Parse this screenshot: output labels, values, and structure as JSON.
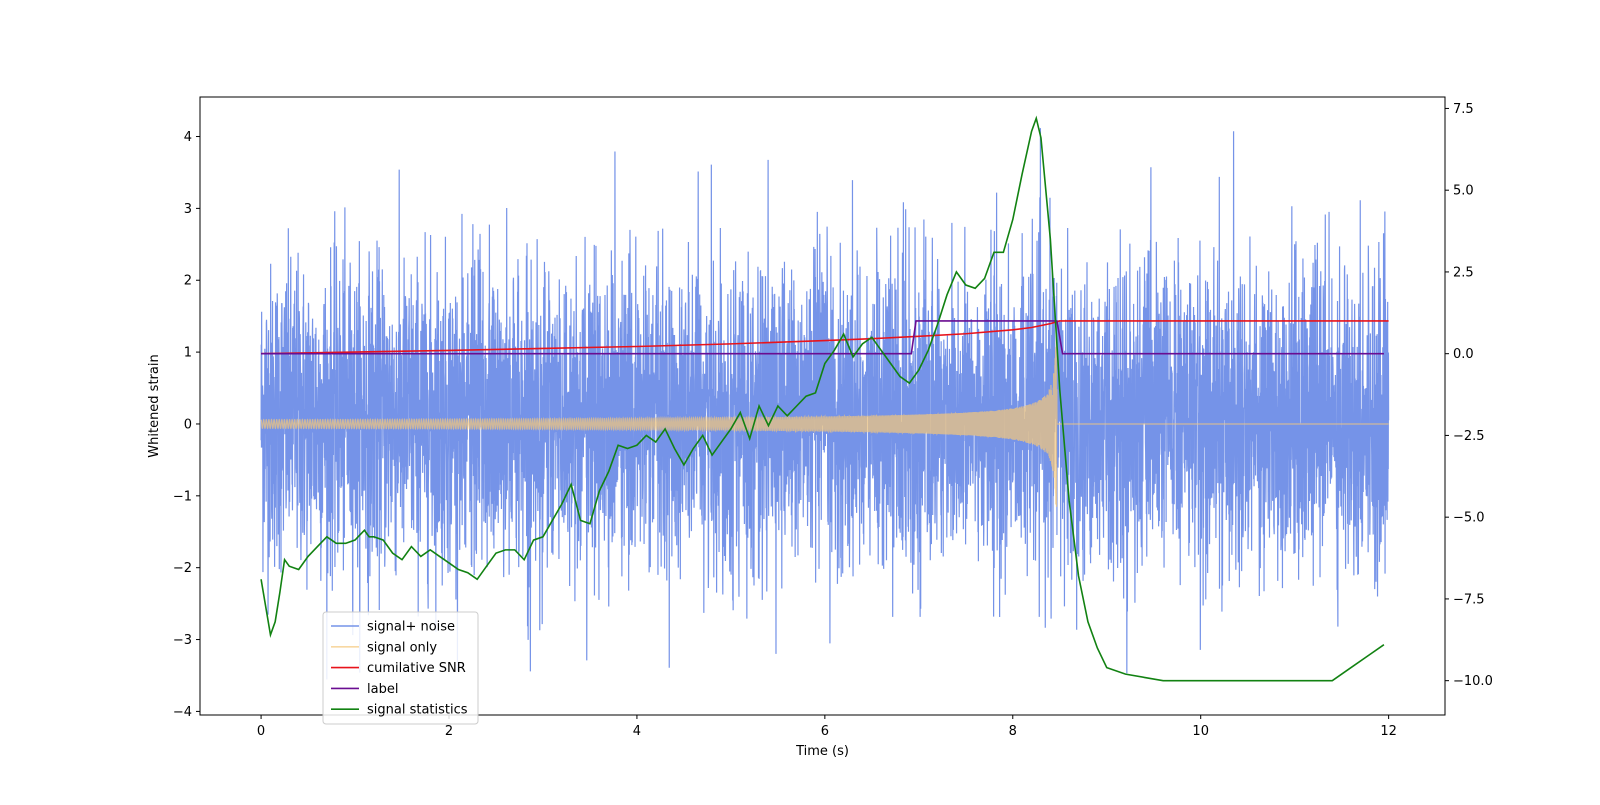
{
  "chart_data": {
    "type": "line",
    "title": "",
    "xlabel": "Time (s)",
    "ylabel": "Whitened strain",
    "y2label": "",
    "xlim": [
      -0.65,
      12.6
    ],
    "ylim": [
      -4.05,
      4.55
    ],
    "y2lim": [
      -11.05,
      7.85
    ],
    "xticks": [
      0,
      2,
      4,
      6,
      8,
      10,
      12
    ],
    "xtick_labels": [
      "0",
      "2",
      "4",
      "6",
      "8",
      "10",
      "12"
    ],
    "yticks": [
      -4,
      -3,
      -2,
      -1,
      0,
      1,
      2,
      3,
      4
    ],
    "ytick_labels": [
      "−4",
      "−3",
      "−2",
      "−1",
      "0",
      "1",
      "2",
      "3",
      "4"
    ],
    "y2ticks": [
      -10.0,
      -7.5,
      -5.0,
      -2.5,
      0.0,
      2.5,
      5.0,
      7.5
    ],
    "y2tick_labels": [
      "−10.0",
      "−7.5",
      "−5.0",
      "−2.5",
      "0.0",
      "2.5",
      "5.0",
      "7.5"
    ],
    "grid": false,
    "legend_position": "bottom-left",
    "series": [
      {
        "name": "signal+ noise",
        "axis": "left",
        "color": "#7593e8",
        "kind": "noise",
        "x_range": [
          0,
          12
        ],
        "typical_range": [
          -1.0,
          1.1
        ],
        "envelope": [
          -3.6,
          4.2
        ]
      },
      {
        "name": "signal only",
        "axis": "left",
        "color": "#f5c77a",
        "kind": "chirp",
        "x_range": [
          0,
          12
        ],
        "merger_time": 8.47,
        "amplitude_start": 0.06,
        "amplitude_peak": 1.5,
        "post_merger_value": 0.0
      },
      {
        "name": "cumilative SNR",
        "axis": "right",
        "color": "#e8131b",
        "x": [
          0,
          1,
          2,
          3,
          4,
          5,
          6,
          6.5,
          7,
          7.5,
          8,
          8.2,
          8.4,
          8.5,
          9,
          10,
          11,
          12
        ],
        "y": [
          0.0,
          0.05,
          0.1,
          0.16,
          0.22,
          0.3,
          0.4,
          0.46,
          0.53,
          0.61,
          0.73,
          0.8,
          0.92,
          1.0,
          1.0,
          1.0,
          1.0,
          1.0
        ]
      },
      {
        "name": "label",
        "axis": "right",
        "color": "#6a0d91",
        "x": [
          0,
          6.92,
          6.97,
          8.47,
          8.53,
          11.95
        ],
        "y": [
          0,
          0,
          1,
          1,
          0,
          0
        ]
      },
      {
        "name": "signal statistics",
        "axis": "right",
        "color": "#128212",
        "x": [
          0,
          0.1,
          0.15,
          0.2,
          0.25,
          0.3,
          0.4,
          0.5,
          0.6,
          0.7,
          0.8,
          0.9,
          1.0,
          1.1,
          1.15,
          1.2,
          1.3,
          1.4,
          1.5,
          1.6,
          1.7,
          1.8,
          1.9,
          2.0,
          2.1,
          2.2,
          2.3,
          2.4,
          2.5,
          2.6,
          2.7,
          2.8,
          2.9,
          3.0,
          3.1,
          3.2,
          3.3,
          3.4,
          3.5,
          3.6,
          3.7,
          3.8,
          3.9,
          4.0,
          4.1,
          4.2,
          4.3,
          4.4,
          4.5,
          4.6,
          4.7,
          4.8,
          4.9,
          5.0,
          5.1,
          5.2,
          5.3,
          5.4,
          5.5,
          5.6,
          5.7,
          5.8,
          5.9,
          6.0,
          6.1,
          6.2,
          6.3,
          6.4,
          6.5,
          6.6,
          6.7,
          6.8,
          6.9,
          7.0,
          7.1,
          7.2,
          7.3,
          7.4,
          7.5,
          7.6,
          7.7,
          7.8,
          7.9,
          8.0,
          8.1,
          8.2,
          8.25,
          8.3,
          8.4,
          8.5,
          8.6,
          8.7,
          8.8,
          8.9,
          9.0,
          9.2,
          9.4,
          9.6,
          9.8,
          10.0,
          10.2,
          10.4,
          10.6,
          10.8,
          11.0,
          11.2,
          11.4,
          11.6,
          11.8,
          11.95
        ],
        "y": [
          -6.9,
          -8.6,
          -8.2,
          -7.3,
          -6.3,
          -6.5,
          -6.6,
          -6.2,
          -5.9,
          -5.6,
          -5.8,
          -5.8,
          -5.7,
          -5.4,
          -5.6,
          -5.6,
          -5.7,
          -6.1,
          -6.3,
          -5.9,
          -6.2,
          -6.0,
          -6.2,
          -6.4,
          -6.6,
          -6.7,
          -6.9,
          -6.5,
          -6.1,
          -6.0,
          -6.0,
          -6.3,
          -5.7,
          -5.6,
          -5.1,
          -4.6,
          -4.0,
          -5.1,
          -5.2,
          -4.2,
          -3.6,
          -2.8,
          -2.9,
          -2.8,
          -2.5,
          -2.7,
          -2.3,
          -2.9,
          -3.4,
          -2.9,
          -2.5,
          -3.1,
          -2.7,
          -2.3,
          -1.8,
          -2.6,
          -1.6,
          -2.2,
          -1.6,
          -1.9,
          -1.6,
          -1.3,
          -1.2,
          -0.3,
          0.1,
          0.6,
          -0.1,
          0.3,
          0.5,
          0.1,
          -0.3,
          -0.7,
          -0.9,
          -0.5,
          0.1,
          0.9,
          1.8,
          2.5,
          2.1,
          2.0,
          2.3,
          3.1,
          3.1,
          4.1,
          5.5,
          6.8,
          7.2,
          6.6,
          3.5,
          -1.1,
          -4.5,
          -6.8,
          -8.2,
          -9.0,
          -9.6,
          -9.8,
          -9.9,
          -10.0,
          -10.0,
          -10.0,
          -10.0,
          -10.0,
          -10.0,
          -10.0,
          -10.0,
          -10.0,
          -10.0,
          -9.6,
          -9.2,
          -8.9
        ]
      }
    ]
  }
}
